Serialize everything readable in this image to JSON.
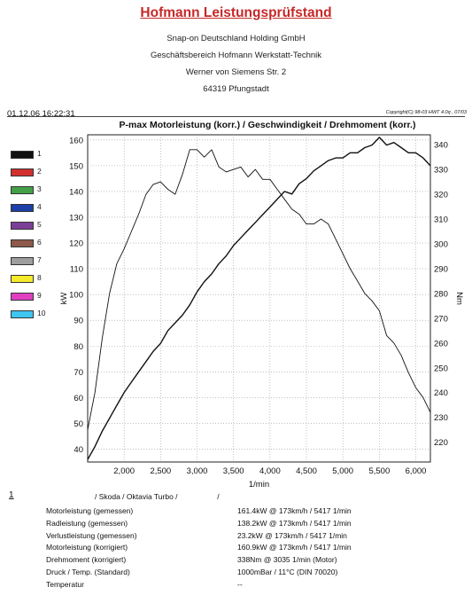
{
  "header": {
    "title": "Hofmann Leistungsprüfstand",
    "company": "Snap-on Deutschland Holding GmbH",
    "division": "Geschäftsbereich Hofmann Werkstatt-Technik",
    "street": "Werner von Siemens Str. 2",
    "city": "64319 Pfungstadt",
    "timestamp": "01.12.06 16:22:31",
    "copyright": "Copyright(C) 98-03 HWT 4.0q , 07/03"
  },
  "legend": [
    {
      "label": "1",
      "color": "#111111"
    },
    {
      "label": "2",
      "color": "#d32f2f"
    },
    {
      "label": "3",
      "color": "#43a047"
    },
    {
      "label": "4",
      "color": "#1e3fa8"
    },
    {
      "label": "5",
      "color": "#7b3f98"
    },
    {
      "label": "6",
      "color": "#8d5a4a"
    },
    {
      "label": "7",
      "color": "#9e9e9e"
    },
    {
      "label": "8",
      "color": "#f4ea2a"
    },
    {
      "label": "9",
      "color": "#e040c0"
    },
    {
      "label": "10",
      "color": "#3ec5f0"
    }
  ],
  "chart_data": {
    "type": "line",
    "title": "P-max Motorleistung (korr.) / Geschwindigkeit / Drehmoment (korr.)",
    "xlabel": "1/min",
    "ylabel_left": "kW",
    "ylabel_right": "Nm",
    "xlim": [
      1500,
      6200
    ],
    "ylim_left": [
      35,
      162
    ],
    "ylim_right": [
      212,
      344
    ],
    "x_ticks": [
      2000,
      2500,
      3000,
      3500,
      4000,
      4500,
      5000,
      5500,
      6000
    ],
    "x_tick_labels": [
      "2,000",
      "2,500",
      "3,000",
      "3,500",
      "4,000",
      "4,500",
      "5,000",
      "5,500",
      "6,000"
    ],
    "y_left_ticks": [
      40,
      50,
      60,
      70,
      80,
      90,
      100,
      110,
      120,
      130,
      140,
      150,
      160
    ],
    "y_right_ticks": [
      220,
      230,
      240,
      250,
      260,
      270,
      280,
      290,
      300,
      310,
      320,
      330,
      340
    ],
    "grid": true,
    "series": [
      {
        "axis": "left",
        "color": "#111111",
        "x": [
          1500,
          1600,
          1700,
          1800,
          1900,
          2000,
          2100,
          2200,
          2300,
          2400,
          2500,
          2600,
          2700,
          2800,
          2900,
          3000,
          3100,
          3200,
          3300,
          3400,
          3500,
          3600,
          3700,
          3800,
          3900,
          4000,
          4100,
          4200,
          4300,
          4400,
          4500,
          4600,
          4700,
          4800,
          4900,
          5000,
          5100,
          5200,
          5300,
          5400,
          5500,
          5600,
          5700,
          5800,
          5900,
          6000,
          6100,
          6200
        ],
        "values": [
          36,
          41,
          47,
          52,
          57,
          62,
          66,
          70,
          74,
          78,
          81,
          86,
          89,
          92,
          96,
          101,
          105,
          108,
          112,
          115,
          119,
          122,
          125,
          128,
          131,
          134,
          137,
          140,
          139,
          143,
          145,
          148,
          150,
          152,
          153,
          153,
          155,
          155,
          157,
          158,
          161,
          158,
          159,
          157,
          155,
          155,
          153,
          150
        ]
      },
      {
        "axis": "right",
        "color": "#111111",
        "x": [
          1500,
          1600,
          1700,
          1800,
          1900,
          2000,
          2100,
          2200,
          2300,
          2400,
          2500,
          2600,
          2700,
          2800,
          2900,
          3000,
          3100,
          3200,
          3300,
          3400,
          3500,
          3600,
          3700,
          3800,
          3900,
          4000,
          4100,
          4200,
          4300,
          4400,
          4500,
          4600,
          4700,
          4800,
          4900,
          5000,
          5100,
          5200,
          5300,
          5400,
          5500,
          5600,
          5700,
          5800,
          5900,
          6000,
          6100,
          6200
        ],
        "values": [
          225,
          240,
          262,
          280,
          292,
          298,
          305,
          312,
          320,
          324,
          325,
          322,
          320,
          328,
          338,
          338,
          335,
          338,
          331,
          329,
          330,
          331,
          327,
          330,
          326,
          326,
          322,
          318,
          314,
          312,
          308,
          308,
          310,
          308,
          302,
          296,
          290,
          285,
          280,
          277,
          273,
          263,
          260,
          255,
          248,
          242,
          238,
          232
        ]
      }
    ]
  },
  "results": {
    "index": "1",
    "vehicle": "/ Skoda / Oktavia Turbo /",
    "vehicle_trailing": "/",
    "rows": [
      {
        "label": "Motorleistung (gemessen)",
        "value": "161.4kW @ 173km/h / 5417 1/min"
      },
      {
        "label": "Radleistung (gemessen)",
        "value": "138.2kW @ 173km/h / 5417 1/min"
      },
      {
        "label": "Verlustleistung (gemessen)",
        "value": "23.2kW @ 173km/h / 5417 1/min"
      },
      {
        "label": "Motorleistung (korrigiert)",
        "value": "160.9kW @ 173km/h / 5417 1/min"
      },
      {
        "label": "Drehmoment (korrigiert)",
        "value": "338Nm @ 3035 1/min (Motor)"
      },
      {
        "label": "Druck / Temp. (Standard)",
        "value": "1000mBar / 11°C  (DIN 70020)"
      },
      {
        "label": "Temperatur",
        "value": "--"
      }
    ]
  }
}
